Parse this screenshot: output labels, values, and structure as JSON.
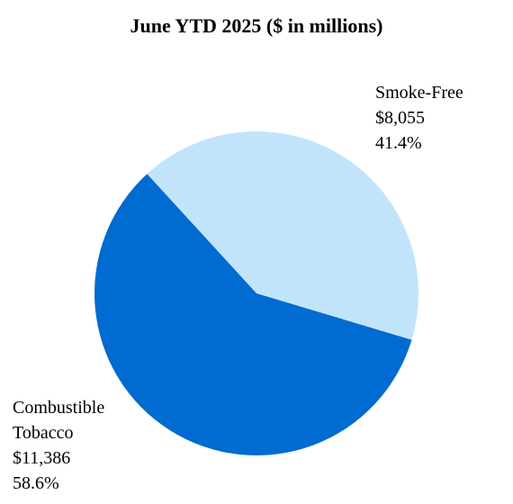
{
  "chart_data": {
    "type": "pie",
    "title": "June YTD 2025 ($ in millions)",
    "categories": [
      "Smoke-Free",
      "Combustible Tobacco"
    ],
    "values": [
      8055,
      11386
    ],
    "value_labels": [
      "$8,055",
      "$11,386"
    ],
    "shares": [
      41.4,
      58.6
    ],
    "share_labels": [
      "41.4%",
      "58.6%"
    ],
    "colors": [
      "#c2e4fb",
      "#006bd0"
    ]
  }
}
